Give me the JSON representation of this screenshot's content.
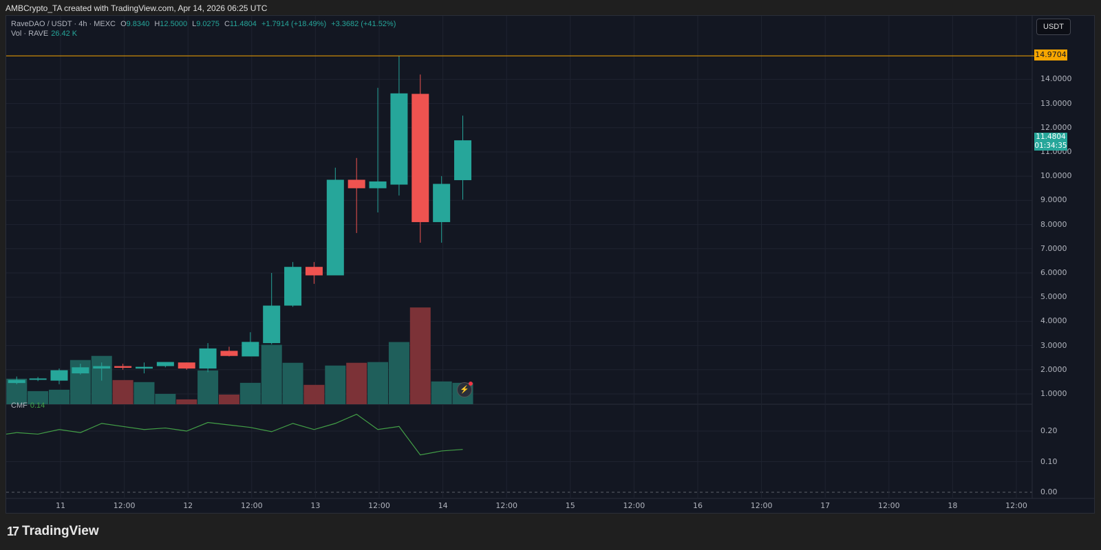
{
  "attribution": "AMBCrypto_TA created with TradingView.com, Apr 14, 2026 06:25 UTC",
  "header": {
    "symbol": "RaveDAO / USDT · 4h · MEXC",
    "o_label": "O",
    "o": "9.8340",
    "h_label": "H",
    "h": "12.5000",
    "l_label": "L",
    "l": "9.0275",
    "c_label": "C",
    "c": "11.4804",
    "change": "+1.7914 (+18.49%)",
    "change2": "+3.3682 (+41.52%)",
    "vol_label": "Vol · RAVE",
    "vol_value": "26.42 K"
  },
  "currency_button": "USDT",
  "reference_line": {
    "label": "14.9704",
    "value": 14.9704,
    "color": "#f7a600"
  },
  "last_price": {
    "price": "11.4804",
    "countdown": "01:34:35",
    "color": "#26a69a"
  },
  "price_axis": [
    "14.0000",
    "13.0000",
    "12.0000",
    "11.0000",
    "10.0000",
    "9.0000",
    "8.0000",
    "7.0000",
    "6.0000",
    "5.0000",
    "4.0000",
    "3.0000",
    "2.0000",
    "1.0000"
  ],
  "cmf": {
    "label": "CMF",
    "value": "0.14",
    "axis": [
      "0.20",
      "0.10",
      "0.00"
    ],
    "color": "#43a047"
  },
  "time_axis": [
    "11",
    "12:00",
    "12",
    "12:00",
    "13",
    "12:00",
    "14",
    "12:00",
    "15",
    "12:00",
    "16",
    "12:00",
    "17",
    "12:00",
    "18",
    "12:00"
  ],
  "colors": {
    "up": "#26a69a",
    "down": "#ef5350",
    "vol_up": "#1f5f5b",
    "vol_down": "#7c3237",
    "bg": "#131722"
  },
  "chart_data": {
    "type": "candlestick",
    "interval": "4h",
    "ylim": [
      0.7,
      15.5
    ],
    "candles": [
      {
        "o": 1.45,
        "h": 1.72,
        "l": 1.4,
        "c": 1.58
      },
      {
        "o": 1.6,
        "h": 1.7,
        "l": 1.53,
        "c": 1.64
      },
      {
        "o": 1.55,
        "h": 2.05,
        "l": 1.4,
        "c": 1.98
      },
      {
        "o": 1.85,
        "h": 2.25,
        "l": 1.8,
        "c": 2.1
      },
      {
        "o": 2.05,
        "h": 2.3,
        "l": 1.55,
        "c": 2.15
      },
      {
        "o": 2.15,
        "h": 2.25,
        "l": 2.0,
        "c": 2.08
      },
      {
        "o": 2.05,
        "h": 2.3,
        "l": 1.85,
        "c": 2.12
      },
      {
        "o": 2.15,
        "h": 2.3,
        "l": 2.1,
        "c": 2.32
      },
      {
        "o": 2.3,
        "h": 2.3,
        "l": 2.0,
        "c": 2.05
      },
      {
        "o": 2.05,
        "h": 3.1,
        "l": 1.9,
        "c": 2.88
      },
      {
        "o": 2.78,
        "h": 2.95,
        "l": 2.55,
        "c": 2.57
      },
      {
        "o": 2.55,
        "h": 3.55,
        "l": 2.55,
        "c": 3.15
      },
      {
        "o": 3.1,
        "h": 6.0,
        "l": 3.05,
        "c": 4.65
      },
      {
        "o": 4.65,
        "h": 6.45,
        "l": 4.6,
        "c": 6.25
      },
      {
        "o": 6.25,
        "h": 6.45,
        "l": 5.55,
        "c": 5.9
      },
      {
        "o": 5.9,
        "h": 10.35,
        "l": 5.9,
        "c": 9.85
      },
      {
        "o": 9.85,
        "h": 10.75,
        "l": 7.65,
        "c": 9.5
      },
      {
        "o": 9.5,
        "h": 13.65,
        "l": 8.5,
        "c": 9.78
      },
      {
        "o": 9.65,
        "h": 14.97,
        "l": 9.2,
        "c": 13.42
      },
      {
        "o": 13.4,
        "h": 14.2,
        "l": 7.25,
        "c": 8.1
      },
      {
        "o": 8.1,
        "h": 10.0,
        "l": 7.25,
        "c": 9.68
      },
      {
        "o": 9.834,
        "h": 12.5,
        "l": 9.0275,
        "c": 11.4804
      }
    ],
    "volume_k": [
      31.5,
      16.2,
      17.9,
      54.5,
      59.6,
      29.8,
      27.3,
      12.8,
      6.0,
      41.7,
      11.9,
      26.4,
      73.3,
      51.1,
      23.9,
      47.7,
      51.1,
      52.0,
      76.7,
      119.3,
      28.1,
      26.42
    ],
    "cmf": [
      0.195,
      0.19,
      0.205,
      0.195,
      0.225,
      0.215,
      0.205,
      0.21,
      0.2,
      0.228,
      0.22,
      0.212,
      0.198,
      0.225,
      0.205,
      0.225,
      0.255,
      0.205,
      0.215,
      0.122,
      0.135,
      0.14
    ]
  }
}
